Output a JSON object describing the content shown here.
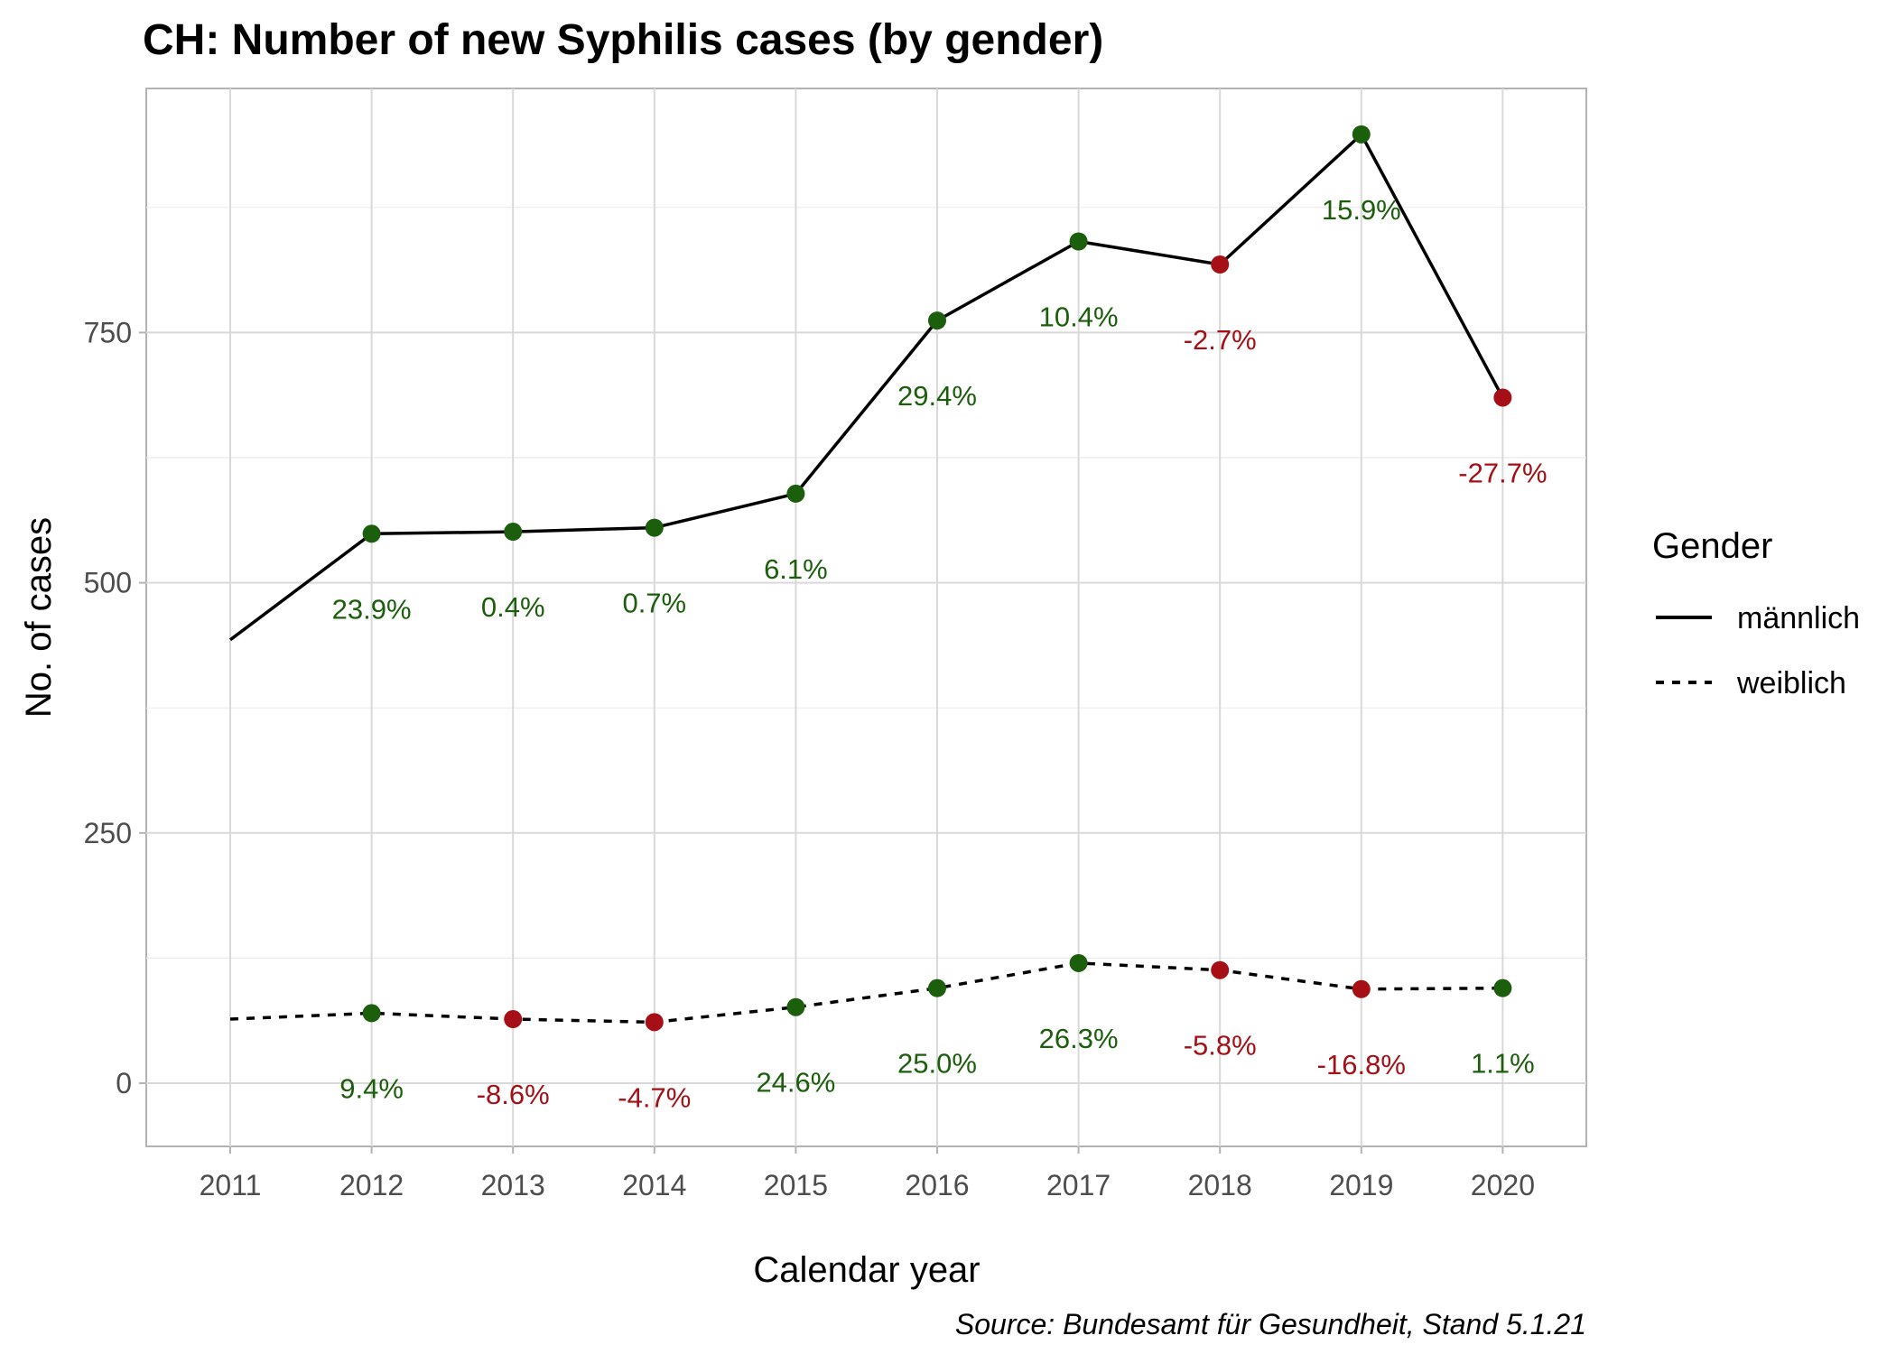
{
  "chart_data": {
    "type": "line",
    "title": "CH: Number of new Syphilis cases (by gender)",
    "xlabel": "Calendar year",
    "ylabel": "No. of cases",
    "caption": "Source: Bundesamt für Gesundheit, Stand 5.1.21",
    "legend_title": "Gender",
    "legend_position": "right",
    "grid": true,
    "x": [
      2011,
      2012,
      2013,
      2014,
      2015,
      2016,
      2017,
      2018,
      2019,
      2020
    ],
    "x_ticks": [
      "2011",
      "2012",
      "2013",
      "2014",
      "2015",
      "2016",
      "2017",
      "2018",
      "2019",
      "2020"
    ],
    "ylim": [
      -60,
      1000
    ],
    "y_ticks": [
      0,
      250,
      500,
      750
    ],
    "y_tick_labels": [
      "0",
      "250",
      "500",
      "750"
    ],
    "colors": {
      "increase": "#1b5e0b",
      "decrease": "#a50f15",
      "line": "#000000"
    },
    "series": [
      {
        "name": "männlich",
        "line_style": "solid",
        "values": [
          443,
          549,
          551,
          555,
          589,
          762,
          841,
          818,
          948,
          685
        ],
        "change_labels": [
          null,
          "23.9%",
          "0.4%",
          "0.7%",
          "6.1%",
          "29.4%",
          "10.4%",
          "-2.7%",
          "15.9%",
          "-27.7%"
        ]
      },
      {
        "name": "weiblich",
        "line_style": "dashed",
        "values": [
          64,
          70,
          64,
          61,
          76,
          95,
          120,
          113,
          94,
          95
        ],
        "change_labels": [
          null,
          "9.4%",
          "-8.6%",
          "-4.7%",
          "24.6%",
          "25.0%",
          "26.3%",
          "-5.8%",
          "-16.8%",
          "1.1%"
        ]
      }
    ]
  }
}
